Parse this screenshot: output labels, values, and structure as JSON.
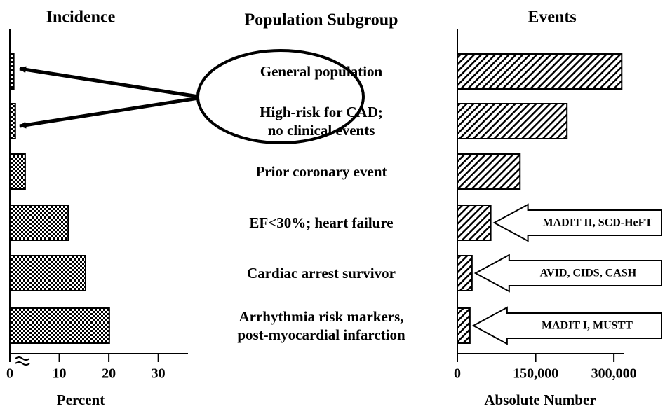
{
  "chart_data": [
    {
      "type": "bar",
      "title": "Incidence",
      "xlabel": "Percent",
      "categories_title": "Population Subgroup",
      "categories": [
        "General population",
        "High-risk for CAD;\nno clinical events",
        "Prior coronary event",
        "EF<30%; heart failure",
        "Cardiac arrest survivor",
        "Arrhythmia risk markers,\npost-myocardial infarction"
      ],
      "values": [
        0.8,
        1.1,
        3.1,
        11.8,
        15.3,
        20.1
      ],
      "xlim": [
        0,
        36
      ],
      "xticks": [
        0,
        10,
        20,
        30
      ]
    },
    {
      "type": "bar",
      "title": "Events",
      "xlabel": "Absolute Number",
      "values": [
        315000,
        210000,
        120000,
        64000,
        28000,
        24000
      ],
      "annotations": [
        null,
        null,
        null,
        "MADIT II, SCD-HeFT",
        "AVID, CIDS, CASH",
        "MADIT I, MUSTT"
      ],
      "xlim": [
        0,
        320000
      ],
      "xticks": [
        0,
        {
          "value": 150000,
          "label": "150,000"
        },
        {
          "value": 300000,
          "label": "300,000"
        }
      ]
    }
  ]
}
